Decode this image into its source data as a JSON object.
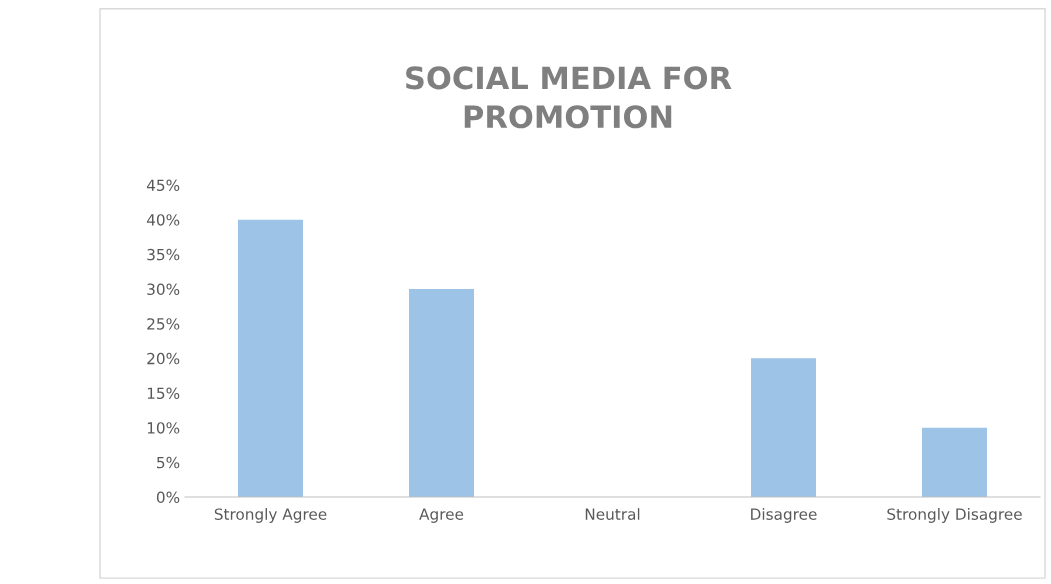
{
  "chart_data": {
    "type": "bar",
    "title": "SOCIAL MEDIA FOR\nPROMOTION",
    "categories": [
      "Strongly Agree",
      "Agree",
      "Neutral",
      "Disagree",
      "Strongly Disagree"
    ],
    "values": [
      40,
      30,
      0,
      20,
      10
    ],
    "color": "#9dc3e6",
    "ylim": [
      0,
      45
    ],
    "yticks": [
      {
        "value": 0,
        "label": "0%"
      },
      {
        "value": 5,
        "label": "5%"
      },
      {
        "value": 10,
        "label": "10%"
      },
      {
        "value": 15,
        "label": "15%"
      },
      {
        "value": 20,
        "label": "20%"
      },
      {
        "value": 25,
        "label": "25%"
      },
      {
        "value": 30,
        "label": "30%"
      },
      {
        "value": 35,
        "label": "35%"
      },
      {
        "value": 40,
        "label": "40%"
      },
      {
        "value": 45,
        "label": "45%"
      }
    ],
    "grid": false,
    "legend": false
  }
}
